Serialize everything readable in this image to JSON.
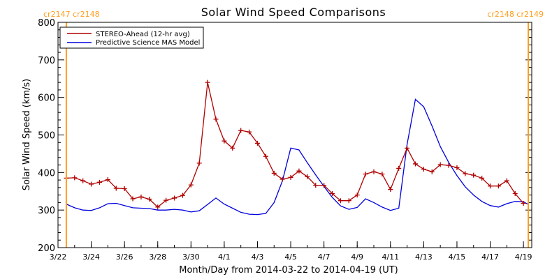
{
  "chart_data": {
    "type": "line",
    "title": "Solar Wind Speed Comparisons",
    "xlabel": "Month/Day from 2014-03-22 to 2014-04-19 (UT)",
    "ylabel": "Solar Wind Speed (km/s)",
    "xlim": [
      "2014-03-22T00:00",
      "2014-04-19T12:00"
    ],
    "ylim": [
      200,
      800
    ],
    "x_ticks": [
      "3/22",
      "3/24",
      "3/26",
      "3/28",
      "3/30",
      "4/1",
      "4/3",
      "4/5",
      "4/7",
      "4/9",
      "4/11",
      "4/13",
      "4/15",
      "4/17",
      "4/19"
    ],
    "y_ticks": [
      "200",
      "300",
      "400",
      "500",
      "600",
      "700",
      "800"
    ],
    "legend_position": "top-left",
    "colors": {
      "stereo": "#b00000",
      "mas": "#0000dd",
      "carrington": "#ff9d1c"
    },
    "carrington_markers": [
      {
        "x": "2014-03-22T12:00",
        "labels": [
          "cr2147",
          "cr2148"
        ],
        "label_side": "left"
      },
      {
        "x": "2014-04-19T07:00",
        "labels": [
          "cr2148",
          "cr2149"
        ],
        "label_side": "right"
      }
    ],
    "series": [
      {
        "name": "STEREO-Ahead (12-hr avg)",
        "marker": "plus",
        "x": [
          "2014-03-22T12:00",
          "2014-03-23T00:00",
          "2014-03-23T12:00",
          "2014-03-24T00:00",
          "2014-03-24T12:00",
          "2014-03-25T00:00",
          "2014-03-25T12:00",
          "2014-03-26T00:00",
          "2014-03-26T12:00",
          "2014-03-27T00:00",
          "2014-03-27T12:00",
          "2014-03-28T00:00",
          "2014-03-28T12:00",
          "2014-03-29T00:00",
          "2014-03-29T12:00",
          "2014-03-30T00:00",
          "2014-03-30T12:00",
          "2014-03-31T00:00",
          "2014-03-31T12:00",
          "2014-04-01T00:00",
          "2014-04-01T12:00",
          "2014-04-02T00:00",
          "2014-04-02T12:00",
          "2014-04-03T00:00",
          "2014-04-03T12:00",
          "2014-04-04T00:00",
          "2014-04-04T12:00",
          "2014-04-05T00:00",
          "2014-04-05T12:00",
          "2014-04-06T00:00",
          "2014-04-06T12:00",
          "2014-04-07T00:00",
          "2014-04-07T12:00",
          "2014-04-08T00:00",
          "2014-04-08T12:00",
          "2014-04-09T00:00",
          "2014-04-09T12:00",
          "2014-04-10T00:00",
          "2014-04-10T12:00",
          "2014-04-11T00:00",
          "2014-04-11T12:00",
          "2014-04-12T00:00",
          "2014-04-12T12:00",
          "2014-04-13T00:00",
          "2014-04-13T12:00",
          "2014-04-14T00:00",
          "2014-04-14T12:00",
          "2014-04-15T00:00",
          "2014-04-15T12:00",
          "2014-04-16T00:00",
          "2014-04-16T12:00",
          "2014-04-17T00:00",
          "2014-04-17T12:00",
          "2014-04-18T00:00",
          "2014-04-18T12:00",
          "2014-04-19T00:00"
        ],
        "values": [
          385,
          386,
          378,
          369,
          374,
          381,
          358,
          357,
          330,
          335,
          329,
          308,
          326,
          332,
          339,
          367,
          425,
          640,
          542,
          484,
          465,
          512,
          508,
          478,
          443,
          398,
          382,
          387,
          404,
          389,
          366,
          366,
          344,
          325,
          325,
          340,
          396,
          402,
          396,
          355,
          411,
          465,
          423,
          409,
          402,
          421,
          419,
          413,
          397,
          393,
          385,
          364,
          364,
          378,
          344,
          318
        ]
      },
      {
        "name": "Predictive Science MAS Model",
        "marker": "none",
        "x": [
          "2014-03-22T12:00",
          "2014-03-23T00:00",
          "2014-03-23T12:00",
          "2014-03-24T00:00",
          "2014-03-24T12:00",
          "2014-03-25T00:00",
          "2014-03-25T12:00",
          "2014-03-26T00:00",
          "2014-03-26T12:00",
          "2014-03-27T00:00",
          "2014-03-27T12:00",
          "2014-03-28T00:00",
          "2014-03-28T12:00",
          "2014-03-29T00:00",
          "2014-03-29T12:00",
          "2014-03-30T00:00",
          "2014-03-30T12:00",
          "2014-03-31T00:00",
          "2014-03-31T12:00",
          "2014-04-01T00:00",
          "2014-04-01T12:00",
          "2014-04-02T00:00",
          "2014-04-02T12:00",
          "2014-04-03T00:00",
          "2014-04-03T12:00",
          "2014-04-04T00:00",
          "2014-04-04T12:00",
          "2014-04-05T00:00",
          "2014-04-05T12:00",
          "2014-04-06T00:00",
          "2014-04-06T12:00",
          "2014-04-07T00:00",
          "2014-04-07T12:00",
          "2014-04-08T00:00",
          "2014-04-08T12:00",
          "2014-04-09T00:00",
          "2014-04-09T12:00",
          "2014-04-10T00:00",
          "2014-04-10T12:00",
          "2014-04-11T00:00",
          "2014-04-11T12:00",
          "2014-04-12T00:00",
          "2014-04-12T12:00",
          "2014-04-13T00:00",
          "2014-04-13T12:00",
          "2014-04-14T00:00",
          "2014-04-14T12:00",
          "2014-04-15T00:00",
          "2014-04-15T12:00",
          "2014-04-16T00:00",
          "2014-04-16T12:00",
          "2014-04-17T00:00",
          "2014-04-17T12:00",
          "2014-04-18T00:00",
          "2014-04-18T12:00",
          "2014-04-19T00:00",
          "2014-04-19T06:00"
        ],
        "values": [
          316,
          306,
          300,
          299,
          306,
          317,
          318,
          312,
          306,
          305,
          304,
          300,
          300,
          302,
          300,
          295,
          298,
          315,
          332,
          316,
          305,
          294,
          289,
          288,
          291,
          320,
          378,
          465,
          460,
          426,
          394,
          363,
          334,
          311,
          302,
          307,
          330,
          320,
          308,
          299,
          305,
          475,
          595,
          575,
          524,
          469,
          427,
          392,
          362,
          340,
          323,
          312,
          308,
          317,
          323,
          322,
          316
        ]
      }
    ]
  }
}
